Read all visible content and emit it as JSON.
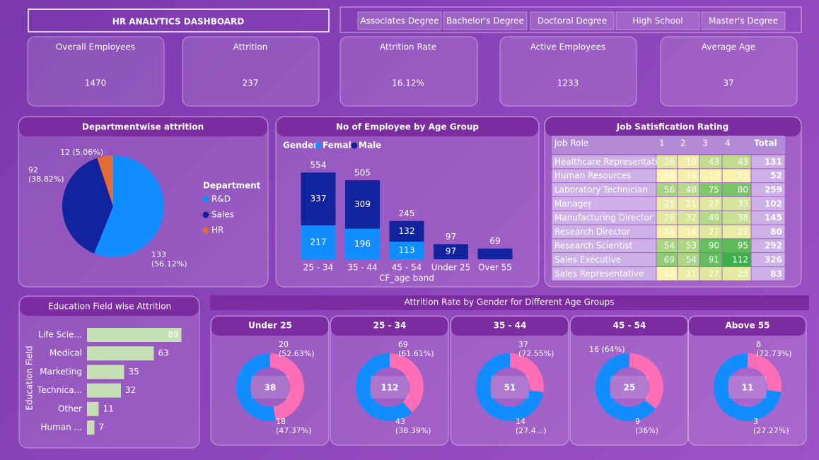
{
  "header": {
    "title": "HR ANALYTICS DASHBOARD",
    "filters": [
      "Associates Degree",
      "Bachelor's Degree",
      "Doctoral Degree",
      "High School",
      "Master's Degree"
    ]
  },
  "kpis": [
    {
      "label": "Overall Employees",
      "value": "1470"
    },
    {
      "label": "Attrition",
      "value": "237"
    },
    {
      "label": "Attrition Rate",
      "value": "16.12%"
    },
    {
      "label": "Active Employees",
      "value": "1233"
    },
    {
      "label": "Average Age",
      "value": "37"
    }
  ],
  "table": {
    "title": "Job Satisfication Rating",
    "columns": [
      "Job Role",
      "1",
      "2",
      "3",
      "4",
      "Total"
    ],
    "rows": [
      [
        "Healthcare Representative",
        26,
        19,
        43,
        43,
        131
      ],
      [
        "Human Resources",
        10,
        16,
        13,
        13,
        52
      ],
      [
        "Laboratory Technician",
        56,
        48,
        75,
        80,
        259
      ],
      [
        "Manager",
        21,
        21,
        27,
        33,
        102
      ],
      [
        "Manufacturing Director",
        26,
        32,
        49,
        38,
        145
      ],
      [
        "Research Director",
        15,
        16,
        27,
        22,
        80
      ],
      [
        "Research Scientist",
        54,
        53,
        90,
        95,
        292
      ],
      [
        "Sales Executive",
        69,
        54,
        91,
        112,
        326
      ],
      [
        "Sales Representative",
        12,
        21,
        27,
        23,
        83
      ]
    ]
  },
  "donut_section_title": "Attrition Rate by Gender for Different Age Groups",
  "chart_data": [
    {
      "type": "pie",
      "title": "Departmentwise attrition",
      "legend_title": "Department",
      "categories": [
        "R&D",
        "Sales",
        "HR"
      ],
      "values": [
        133,
        92,
        12
      ],
      "value_labels": [
        "133 (56.12%)",
        "92 (38.82%)",
        "12 (5.06%)"
      ],
      "colors": [
        "#118dff",
        "#12239e",
        "#e66c37"
      ]
    },
    {
      "type": "stacked_bar",
      "title": "No of Employee by Age Group",
      "legend_title": "Gender",
      "x_label": "CF_age band",
      "categories": [
        "25 - 34",
        "35 - 44",
        "45 - 54",
        "Under 25",
        "Over 55"
      ],
      "series": [
        {
          "name": "Female",
          "color": "#118dff",
          "values": [
            217,
            196,
            113,
            null,
            null
          ]
        },
        {
          "name": "Male",
          "color": "#12239e",
          "values": [
            337,
            309,
            132,
            97,
            69
          ]
        }
      ],
      "totals": [
        554,
        505,
        245,
        97,
        69
      ],
      "ylim": [
        0,
        600
      ]
    },
    {
      "type": "hbar",
      "title": "Education Field wise Attrition",
      "y_label": "Education Field",
      "categories": [
        "Life Scie...",
        "Medical",
        "Marketing",
        "Technica...",
        "Other",
        "Human ..."
      ],
      "values": [
        89,
        63,
        35,
        32,
        11,
        7
      ],
      "color": "#c5e0b4",
      "xlim": [
        0,
        100
      ]
    },
    {
      "type": "donut",
      "title": "Under 25",
      "total": 38,
      "values": [
        20,
        18
      ],
      "value_labels": [
        "20 (52.63%)",
        "18 (47.37%)"
      ],
      "colors": [
        "#118dff",
        "#ff6eb4"
      ]
    },
    {
      "type": "donut",
      "title": "25 - 34",
      "total": 112,
      "values": [
        69,
        43
      ],
      "value_labels": [
        "69 (61.61%)",
        "43 (38.39%)"
      ],
      "colors": [
        "#118dff",
        "#ff6eb4"
      ]
    },
    {
      "type": "donut",
      "title": "35 - 44",
      "total": 51,
      "values": [
        37,
        14
      ],
      "value_labels": [
        "37 (72.55%)",
        "14 (27.4...)"
      ],
      "colors": [
        "#118dff",
        "#ff6eb4"
      ]
    },
    {
      "type": "donut",
      "title": "45 - 54",
      "total": 25,
      "values": [
        16,
        9
      ],
      "value_labels": [
        "16 (64%)",
        "9 (36%)"
      ],
      "colors": [
        "#118dff",
        "#ff6eb4"
      ]
    },
    {
      "type": "donut",
      "title": "Above 55",
      "total": 11,
      "values": [
        8,
        3
      ],
      "value_labels": [
        "8 (72.73%)",
        "3 (27.27%)"
      ],
      "colors": [
        "#118dff",
        "#ff6eb4"
      ]
    }
  ]
}
